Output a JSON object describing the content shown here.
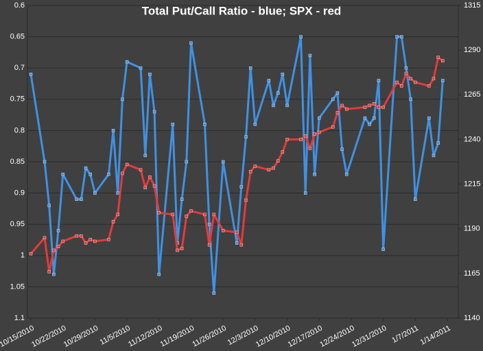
{
  "chart_data": {
    "type": "line",
    "title": "Total Put/Call Ratio - blue; SPX - red",
    "x": [
      "10/15/2010",
      "10/18/2010",
      "10/19/2010",
      "10/20/2010",
      "10/21/2010",
      "10/22/2010",
      "10/25/2010",
      "10/26/2010",
      "10/27/2010",
      "10/28/2010",
      "10/29/2010",
      "11/1/2010",
      "11/2/2010",
      "11/3/2010",
      "11/4/2010",
      "11/5/2010",
      "11/8/2010",
      "11/9/2010",
      "11/10/2010",
      "11/11/2010",
      "11/12/2010",
      "11/15/2010",
      "11/16/2010",
      "11/17/2010",
      "11/18/2010",
      "11/19/2010",
      "11/22/2010",
      "11/23/2010",
      "11/24/2010",
      "11/26/2010",
      "11/29/2010",
      "11/30/2010",
      "12/1/2010",
      "12/2/2010",
      "12/3/2010",
      "12/6/2010",
      "12/7/2010",
      "12/8/2010",
      "12/9/2010",
      "12/10/2010",
      "12/13/2010",
      "12/14/2010",
      "12/15/2010",
      "12/16/2010",
      "12/17/2010",
      "12/20/2010",
      "12/21/2010",
      "12/22/2010",
      "12/23/2010",
      "12/27/2010",
      "12/28/2010",
      "12/29/2010",
      "12/30/2010",
      "12/31/2010",
      "1/3/2011",
      "1/4/2011",
      "1/5/2011",
      "1/6/2011",
      "1/7/2011",
      "1/10/2011",
      "1/11/2011",
      "1/12/2011",
      "1/13/2011"
    ],
    "series": [
      {
        "name": "Total Put/Call Ratio",
        "color": "#3f91e3",
        "axis": "y",
        "values": [
          0.71,
          0.85,
          0.92,
          1.03,
          0.96,
          0.87,
          0.91,
          0.91,
          0.86,
          0.87,
          0.9,
          0.87,
          0.8,
          0.9,
          0.75,
          0.69,
          0.7,
          0.84,
          0.71,
          0.77,
          1.03,
          0.79,
          0.98,
          0.91,
          0.85,
          0.66,
          0.79,
          0.95,
          1.06,
          0.85,
          0.98,
          0.89,
          0.81,
          0.7,
          0.79,
          0.72,
          0.76,
          0.74,
          0.71,
          0.76,
          0.65,
          0.9,
          0.68,
          0.87,
          0.78,
          0.75,
          0.74,
          0.83,
          0.87,
          0.78,
          0.79,
          0.78,
          0.72,
          0.99,
          0.65,
          0.65,
          0.7,
          0.75,
          0.91,
          0.78,
          0.84,
          0.82,
          0.72
        ]
      },
      {
        "name": "SPX",
        "color": "#e33b3b",
        "axis": "y2",
        "values": [
          1176,
          1185,
          1166,
          1178,
          1180,
          1183,
          1186,
          1186,
          1182,
          1184,
          1183,
          1184,
          1194,
          1198,
          1221,
          1226,
          1223,
          1213,
          1219,
          1214,
          1199,
          1198,
          1178,
          1179,
          1197,
          1200,
          1198,
          1181,
          1198,
          1189,
          1188,
          1181,
          1206,
          1222,
          1225,
          1223,
          1224,
          1228,
          1233,
          1240,
          1240,
          1242,
          1235,
          1243,
          1244,
          1247,
          1255,
          1259,
          1257,
          1258,
          1259,
          1260,
          1258,
          1258,
          1272,
          1270,
          1277,
          1274,
          1272,
          1270,
          1274,
          1286,
          1284
        ]
      }
    ],
    "xticks": [
      "10/15/2010",
      "10/22/2010",
      "10/29/2010",
      "11/5/2010",
      "11/12/2010",
      "11/19/2010",
      "11/26/2010",
      "12/3/2010",
      "12/10/2010",
      "12/17/2010",
      "12/24/2010",
      "12/31/2010",
      "1/7/2011",
      "1/14/2011"
    ],
    "xlim": [
      "10/15/2010",
      "1/14/2011"
    ],
    "ylim": [
      0.6,
      1.1
    ],
    "y_reversed": true,
    "yticks": [
      0.6,
      0.65,
      0.7,
      0.75,
      0.8,
      0.85,
      0.9,
      0.95,
      1,
      1.05,
      1.1
    ],
    "y2lim": [
      1140,
      1315
    ],
    "y2ticks": [
      1140,
      1165,
      1190,
      1215,
      1240,
      1265,
      1290,
      1315
    ],
    "grid": true
  }
}
